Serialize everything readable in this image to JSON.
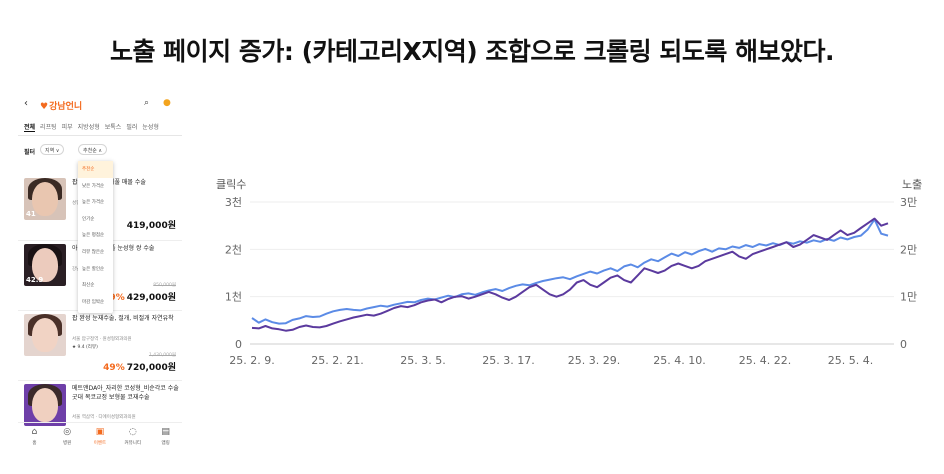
{
  "headline": "노출 페이지 증가: (카테고리X지역) 조합으로 크롤링 되도록 해보았다.",
  "app": {
    "back_icon": "‹",
    "logo_text": "강남언니",
    "categories": [
      "전체",
      "리프팅",
      "피부",
      "지방성형",
      "보톡스",
      "필러",
      "눈성형"
    ],
    "filter_label": "필터",
    "region_chip": "지역 ∨",
    "sort_chip": "추천순 ∧",
    "dropdown": [
      "추천순",
      "낮은 가격순",
      "높은 가격순",
      "인기순",
      "높은 평점순",
      "리뷰 많은순",
      "높은 할인순",
      "최신순",
      "마감 임박순"
    ],
    "items": [
      {
        "thumb_tag": "41",
        "title": "팝 자연유착 쌍꺼풀 매몰 수술",
        "sub": "성형외과의원",
        "price": "419,000원",
        "orig": "",
        "disc": "",
        "rating": ""
      },
      {
        "thumb_tag": "42.9",
        "title": "아 연유착_쌍꺼풀 눈성형 쌍 수술",
        "sub": "강남점 의원",
        "price": "429,000원",
        "orig": "850,000원",
        "disc": "49%",
        "rating": ""
      },
      {
        "thumb_tag": "",
        "title": "팝 완성 눈재수술, 절개, 비절개 자연유착",
        "sub": "서울 압구정역 · 원성형외과의원",
        "price": "720,000원",
        "orig": "1,430,000원",
        "disc": "49%",
        "rating": "★ 9.4 (리뷰)"
      },
      {
        "thumb_tag": "",
        "title": "메트앤DA아_자리한 코성형_비순각코 수술 굿대 복코교정 보형물 코재수술",
        "sub": "서울 역삼역 · 디에이성형외과의원",
        "price": "",
        "orig": "",
        "disc": "",
        "rating": ""
      }
    ],
    "bottom_nav": [
      {
        "icon": "⌂",
        "label": "홈"
      },
      {
        "icon": "◎",
        "label": "병원"
      },
      {
        "icon": "▣",
        "label": "이벤트"
      },
      {
        "icon": "◌",
        "label": "커뮤니티"
      },
      {
        "icon": "▤",
        "label": "앱링"
      }
    ]
  },
  "chart_data": {
    "type": "line",
    "y_left_title": "클릭수",
    "y_right_title": "노출",
    "y_left_ticks": [
      "0",
      "1천",
      "2천",
      "3천"
    ],
    "y_right_ticks": [
      "0",
      "1만",
      "2만",
      "3만"
    ],
    "ylim_left": [
      0,
      3000
    ],
    "ylim_right": [
      0,
      30000
    ],
    "x_ticks": [
      "25. 2. 9.",
      "25. 2. 21.",
      "25. 3. 5.",
      "25. 3. 17.",
      "25. 3. 29.",
      "25. 4. 10.",
      "25. 4. 22.",
      "25. 5. 4."
    ],
    "colors": {
      "clicks": "#5b3a9e",
      "impressions": "#5b8be6"
    },
    "series": [
      {
        "name": "",
        "axis": "left",
        "values": [
          340,
          330,
          380,
          330,
          310,
          280,
          300,
          360,
          390,
          360,
          350,
          380,
          430,
          480,
          520,
          560,
          590,
          620,
          600,
          640,
          700,
          760,
          800,
          780,
          820,
          880,
          920,
          940,
          880,
          950,
          1000,
          1010,
          960,
          1000,
          1050,
          1100,
          1050,
          980,
          930,
          1000,
          1100,
          1200,
          1250,
          1150,
          1050,
          1000,
          1050,
          1150,
          1300,
          1350,
          1250,
          1200,
          1300,
          1400,
          1450,
          1350,
          1300,
          1450,
          1600,
          1550,
          1500,
          1550,
          1650,
          1700,
          1650,
          1600,
          1650,
          1750,
          1800,
          1850,
          1900,
          1950,
          1850,
          1800,
          1900,
          1950,
          2000,
          2050,
          2100,
          2150,
          2050,
          2100,
          2200,
          2300,
          2250,
          2200,
          2300,
          2400,
          2300,
          2350,
          2450,
          2550,
          2650,
          2500,
          2550
        ]
      },
      {
        "name": "",
        "axis": "right",
        "values": [
          5500,
          4500,
          5200,
          4600,
          4300,
          4400,
          5100,
          5400,
          5900,
          5700,
          5800,
          6400,
          6900,
          7200,
          7400,
          7200,
          7100,
          7500,
          7800,
          8100,
          7900,
          8300,
          8600,
          8900,
          8800,
          9300,
          9600,
          9400,
          9800,
          10200,
          9900,
          10500,
          10700,
          10400,
          10900,
          11300,
          11600,
          11200,
          11800,
          12300,
          12600,
          12400,
          12900,
          13300,
          13600,
          13900,
          14100,
          13700,
          14300,
          14800,
          15300,
          14900,
          15500,
          16000,
          15400,
          16400,
          16800,
          16200,
          17200,
          17900,
          17500,
          18300,
          19100,
          18600,
          19400,
          18900,
          19600,
          20100,
          19500,
          20200,
          20000,
          20600,
          20300,
          20900,
          20500,
          21100,
          20800,
          21300,
          20900,
          21500,
          21200,
          21700,
          21400,
          21900,
          21600,
          22200,
          21800,
          22500,
          22100,
          22600,
          22900,
          24200,
          26300,
          23300,
          22900
        ]
      }
    ]
  }
}
